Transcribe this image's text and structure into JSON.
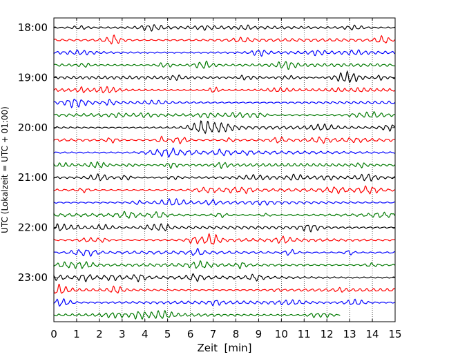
{
  "chart_data": {
    "type": "line",
    "title": "",
    "xlabel": "Zeit  [min]",
    "ylabel": "UTC (Lokalzeit = UTC + 01:00)",
    "xlim": [
      0,
      15
    ],
    "x_ticks": [
      0,
      1,
      2,
      3,
      4,
      5,
      6,
      7,
      8,
      9,
      10,
      11,
      12,
      13,
      14,
      15
    ],
    "y_ticks": [
      "18:00",
      "19:00",
      "20:00",
      "21:00",
      "22:00",
      "23:00"
    ],
    "trace_interval_min": 15,
    "grid": "vertical dotted lines at each minute",
    "trace_colors": [
      "#000000",
      "#ff0000",
      "#0000ff",
      "#007a00"
    ],
    "traces": [
      {
        "start": "18:00",
        "color": "#000000",
        "end_min": 15
      },
      {
        "start": "18:15",
        "color": "#ff0000",
        "end_min": 15
      },
      {
        "start": "18:30",
        "color": "#0000ff",
        "end_min": 15
      },
      {
        "start": "18:45",
        "color": "#007a00",
        "end_min": 15
      },
      {
        "start": "19:00",
        "color": "#000000",
        "end_min": 15
      },
      {
        "start": "19:15",
        "color": "#ff0000",
        "end_min": 15
      },
      {
        "start": "19:30",
        "color": "#0000ff",
        "end_min": 15
      },
      {
        "start": "19:45",
        "color": "#007a00",
        "end_min": 15
      },
      {
        "start": "20:00",
        "color": "#000000",
        "end_min": 15
      },
      {
        "start": "20:15",
        "color": "#ff0000",
        "end_min": 15
      },
      {
        "start": "20:30",
        "color": "#0000ff",
        "end_min": 15
      },
      {
        "start": "20:45",
        "color": "#007a00",
        "end_min": 15
      },
      {
        "start": "21:00",
        "color": "#000000",
        "end_min": 15
      },
      {
        "start": "21:15",
        "color": "#ff0000",
        "end_min": 15
      },
      {
        "start": "21:30",
        "color": "#0000ff",
        "end_min": 15
      },
      {
        "start": "21:45",
        "color": "#007a00",
        "end_min": 15
      },
      {
        "start": "22:00",
        "color": "#000000",
        "end_min": 15
      },
      {
        "start": "22:15",
        "color": "#ff0000",
        "end_min": 15
      },
      {
        "start": "22:30",
        "color": "#0000ff",
        "end_min": 15
      },
      {
        "start": "22:45",
        "color": "#007a00",
        "end_min": 15
      },
      {
        "start": "23:00",
        "color": "#000000",
        "end_min": 15
      },
      {
        "start": "23:15",
        "color": "#ff0000",
        "end_min": 15
      },
      {
        "start": "23:30",
        "color": "#0000ff",
        "end_min": 15
      },
      {
        "start": "23:45",
        "color": "#007a00",
        "end_min": 12.6
      }
    ]
  }
}
